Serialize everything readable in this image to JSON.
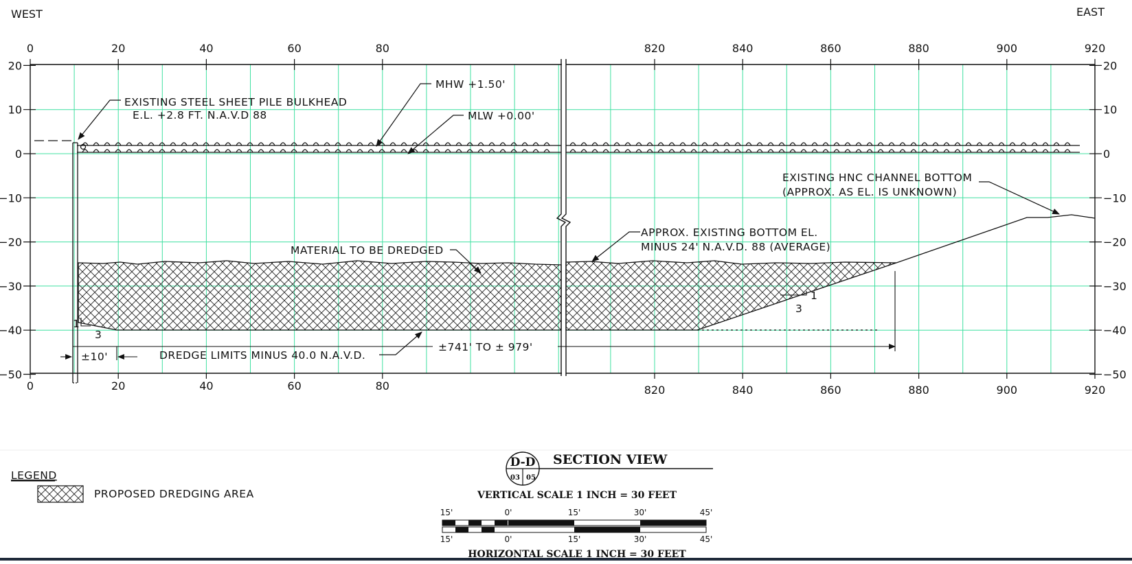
{
  "directions": {
    "west": "WEST",
    "east": "EAST"
  },
  "axes": {
    "x_left_ticks": [
      "0",
      "20",
      "40",
      "60",
      "80"
    ],
    "x_right_ticks": [
      "820",
      "840",
      "860",
      "880",
      "900",
      "920"
    ],
    "y_ticks": [
      "20",
      "10",
      "0",
      "-10",
      "-20",
      "-30",
      "-40",
      "-50"
    ]
  },
  "annotations": {
    "bulkhead_1": "EXISTING STEEL SHEET PILE BULKHEAD",
    "bulkhead_2": "E.L. +2.8 FT. N.A.V.D 88",
    "mhw": "MHW +1.50'",
    "mlw": "MLW +0.00'",
    "channel_1": "EXISTING HNC CHANNEL BOTTOM",
    "channel_2": "(APPROX. AS EL. IS UNKNOWN)",
    "bottom_1": "APPROX. EXISTING BOTTOM EL.",
    "bottom_2": "MINUS 24' N.A.V.D. 88 (AVERAGE)",
    "material": "MATERIAL TO BE DREDGED",
    "dredge_limits": "DREDGE LIMITS MINUS 40.0 N.A.V.D.",
    "span": "±741' TO ± 979'",
    "offset": "±10'",
    "slope_rise": "1",
    "slope_run": "3"
  },
  "legend": {
    "title": "LEGEND",
    "item": "PROPOSED DREDGING AREA"
  },
  "title_block": {
    "section": "D-D",
    "sheet_a": "03",
    "sheet_b": "05",
    "title": "SECTION VIEW",
    "vertical_scale": "VERTICAL SCALE 1 INCH = 30 FEET",
    "horizontal_scale": "HORIZONTAL SCALE 1 INCH = 30 FEET",
    "bar_labels": [
      "15'",
      "0'",
      "15'",
      "30'",
      "45'"
    ]
  },
  "colors": {
    "grid": "#3fe0a0",
    "ink": "#111111"
  }
}
